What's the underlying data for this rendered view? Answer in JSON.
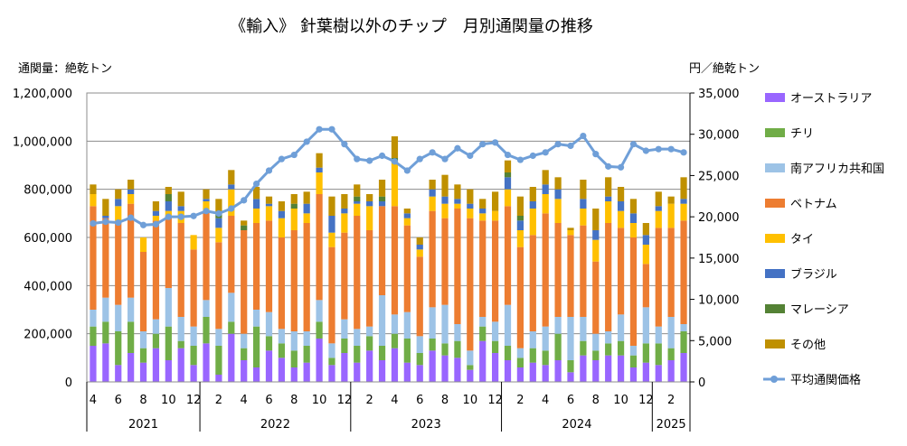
{
  "chart_data": {
    "type": "bar",
    "title": "《輸入》 針葉樹以外のチップ　月別通関量の推移",
    "ylabel": "通関量：絶乾トン",
    "y2label": "円／絶乾トン",
    "ylim": [
      0,
      1200000
    ],
    "y2lim": [
      0,
      35000
    ],
    "yticks": [
      "0",
      "200,000",
      "400,000",
      "600,000",
      "800,000",
      "1,000,000",
      "1,200,000"
    ],
    "y2ticks": [
      "0",
      "5,000",
      "10,000",
      "15,000",
      "20,000",
      "25,000",
      "30,000",
      "35,000"
    ],
    "grid": true,
    "legend_position": "right",
    "months": [
      4,
      5,
      6,
      7,
      8,
      9,
      10,
      11,
      12,
      1,
      2,
      3,
      4,
      5,
      6,
      7,
      8,
      9,
      10,
      11,
      12,
      1,
      2,
      3,
      4,
      5,
      6,
      7,
      8,
      9,
      10,
      11,
      12,
      1,
      2,
      3,
      4,
      5,
      6,
      7,
      8,
      9,
      10,
      11,
      12,
      1,
      2,
      3
    ],
    "month_labels": [
      "4",
      "",
      "6",
      "",
      "8",
      "",
      "10",
      "",
      "12",
      "",
      "2",
      "",
      "4",
      "",
      "6",
      "",
      "8",
      "",
      "10",
      "",
      "12",
      "",
      "2",
      "",
      "4",
      "",
      "6",
      "",
      "8",
      "",
      "10",
      "",
      "12",
      "",
      "2",
      "",
      "4",
      "",
      "6",
      "",
      "8",
      "",
      "10",
      "",
      "12",
      "",
      "2",
      ""
    ],
    "years": [
      {
        "label": "2021",
        "start": 0,
        "end": 9
      },
      {
        "label": "2022",
        "start": 9,
        "end": 21
      },
      {
        "label": "2023",
        "start": 21,
        "end": 33
      },
      {
        "label": "2024",
        "start": 33,
        "end": 45
      },
      {
        "label": "2025",
        "start": 45,
        "end": 48
      }
    ],
    "series": [
      {
        "name": "オーストラリア",
        "color": "#9966ff",
        "values": [
          150000,
          160000,
          70000,
          120000,
          80000,
          140000,
          90000,
          140000,
          70000,
          160000,
          30000,
          200000,
          90000,
          60000,
          130000,
          100000,
          60000,
          80000,
          180000,
          70000,
          120000,
          80000,
          130000,
          90000,
          140000,
          80000,
          70000,
          130000,
          110000,
          100000,
          50000,
          170000,
          120000,
          90000,
          60000,
          80000,
          70000,
          90000,
          40000,
          110000,
          90000,
          110000,
          110000,
          60000,
          80000,
          70000,
          90000,
          120000
        ]
      },
      {
        "name": "チリ",
        "color": "#70ad47",
        "values": [
          80000,
          90000,
          140000,
          130000,
          60000,
          60000,
          140000,
          30000,
          80000,
          110000,
          120000,
          50000,
          50000,
          170000,
          60000,
          60000,
          70000,
          70000,
          70000,
          30000,
          60000,
          70000,
          60000,
          60000,
          60000,
          100000,
          50000,
          50000,
          50000,
          70000,
          20000,
          60000,
          50000,
          60000,
          40000,
          60000,
          60000,
          110000,
          50000,
          60000,
          40000,
          50000,
          60000,
          50000,
          80000,
          90000,
          50000,
          90000
        ]
      },
      {
        "name": "南アフリカ共和国",
        "color": "#9dc3e6",
        "values": [
          70000,
          100000,
          110000,
          100000,
          70000,
          60000,
          160000,
          100000,
          80000,
          70000,
          70000,
          120000,
          60000,
          70000,
          100000,
          60000,
          80000,
          60000,
          90000,
          60000,
          80000,
          70000,
          40000,
          210000,
          80000,
          110000,
          70000,
          130000,
          160000,
          70000,
          60000,
          40000,
          80000,
          170000,
          40000,
          70000,
          100000,
          70000,
          180000,
          100000,
          70000,
          50000,
          110000,
          40000,
          150000,
          70000,
          130000,
          30000
        ]
      },
      {
        "name": "ベトナム",
        "color": "#ed7d31",
        "values": [
          430000,
          330000,
          350000,
          390000,
          330000,
          410000,
          300000,
          390000,
          320000,
          370000,
          360000,
          320000,
          430000,
          360000,
          380000,
          380000,
          420000,
          450000,
          440000,
          400000,
          360000,
          470000,
          400000,
          370000,
          450000,
          360000,
          330000,
          400000,
          360000,
          480000,
          550000,
          400000,
          420000,
          410000,
          420000,
          400000,
          470000,
          390000,
          340000,
          380000,
          300000,
          450000,
          360000,
          450000,
          180000,
          410000,
          370000,
          430000
        ]
      },
      {
        "name": "タイ",
        "color": "#ffc000",
        "values": [
          50000,
          0,
          60000,
          40000,
          60000,
          20000,
          20000,
          50000,
          60000,
          40000,
          60000,
          110000,
          0,
          60000,
          60000,
          80000,
          90000,
          40000,
          90000,
          60000,
          80000,
          50000,
          100000,
          0,
          180000,
          30000,
          30000,
          60000,
          60000,
          20000,
          40000,
          30000,
          40000,
          70000,
          70000,
          110000,
          80000,
          100000,
          20000,
          70000,
          90000,
          90000,
          70000,
          60000,
          80000,
          70000,
          100000,
          70000
        ]
      },
      {
        "name": "ブラジル",
        "color": "#4472c4",
        "values": [
          0,
          10000,
          30000,
          20000,
          0,
          20000,
          40000,
          20000,
          0,
          10000,
          40000,
          20000,
          0,
          40000,
          10000,
          30000,
          0,
          40000,
          20000,
          70000,
          20000,
          10000,
          20000,
          20000,
          0,
          20000,
          20000,
          30000,
          30000,
          20000,
          20000,
          20000,
          0,
          50000,
          40000,
          30000,
          40000,
          40000,
          0,
          40000,
          40000,
          20000,
          40000,
          40000,
          40000,
          20000,
          0,
          20000
        ]
      },
      {
        "name": "マレーシア",
        "color": "#548235",
        "values": [
          0,
          0,
          0,
          0,
          0,
          0,
          30000,
          0,
          0,
          0,
          20000,
          0,
          20000,
          0,
          0,
          0,
          20000,
          0,
          0,
          0,
          0,
          20000,
          0,
          20000,
          20000,
          0,
          0,
          0,
          0,
          0,
          0,
          0,
          0,
          20000,
          20000,
          0,
          0,
          0,
          0,
          0,
          0,
          0,
          0,
          0,
          0,
          0,
          0,
          0
        ]
      },
      {
        "name": "その他",
        "color": "#bf9000",
        "values": [
          40000,
          70000,
          40000,
          40000,
          0,
          40000,
          30000,
          60000,
          0,
          40000,
          60000,
          60000,
          20000,
          50000,
          30000,
          40000,
          40000,
          50000,
          60000,
          80000,
          60000,
          50000,
          30000,
          70000,
          90000,
          20000,
          30000,
          40000,
          90000,
          60000,
          60000,
          40000,
          80000,
          50000,
          80000,
          60000,
          60000,
          50000,
          10000,
          80000,
          90000,
          80000,
          60000,
          60000,
          50000,
          60000,
          30000,
          90000
        ]
      },
      {
        "name": "平均通関価格",
        "color": "#6f9fd8",
        "type": "line",
        "axis": "y2",
        "values": [
          19200,
          19400,
          19300,
          19900,
          19000,
          19100,
          20000,
          20000,
          20100,
          20700,
          20400,
          21000,
          22000,
          24000,
          25600,
          27000,
          27500,
          29100,
          30600,
          30600,
          28800,
          27000,
          26800,
          27400,
          26700,
          25600,
          27000,
          27800,
          27000,
          28300,
          27400,
          28800,
          29000,
          27500,
          26900,
          27400,
          27800,
          28800,
          28600,
          29800,
          27600,
          26100,
          26000,
          28800,
          28000,
          28200,
          28200,
          27800
        ]
      }
    ]
  }
}
